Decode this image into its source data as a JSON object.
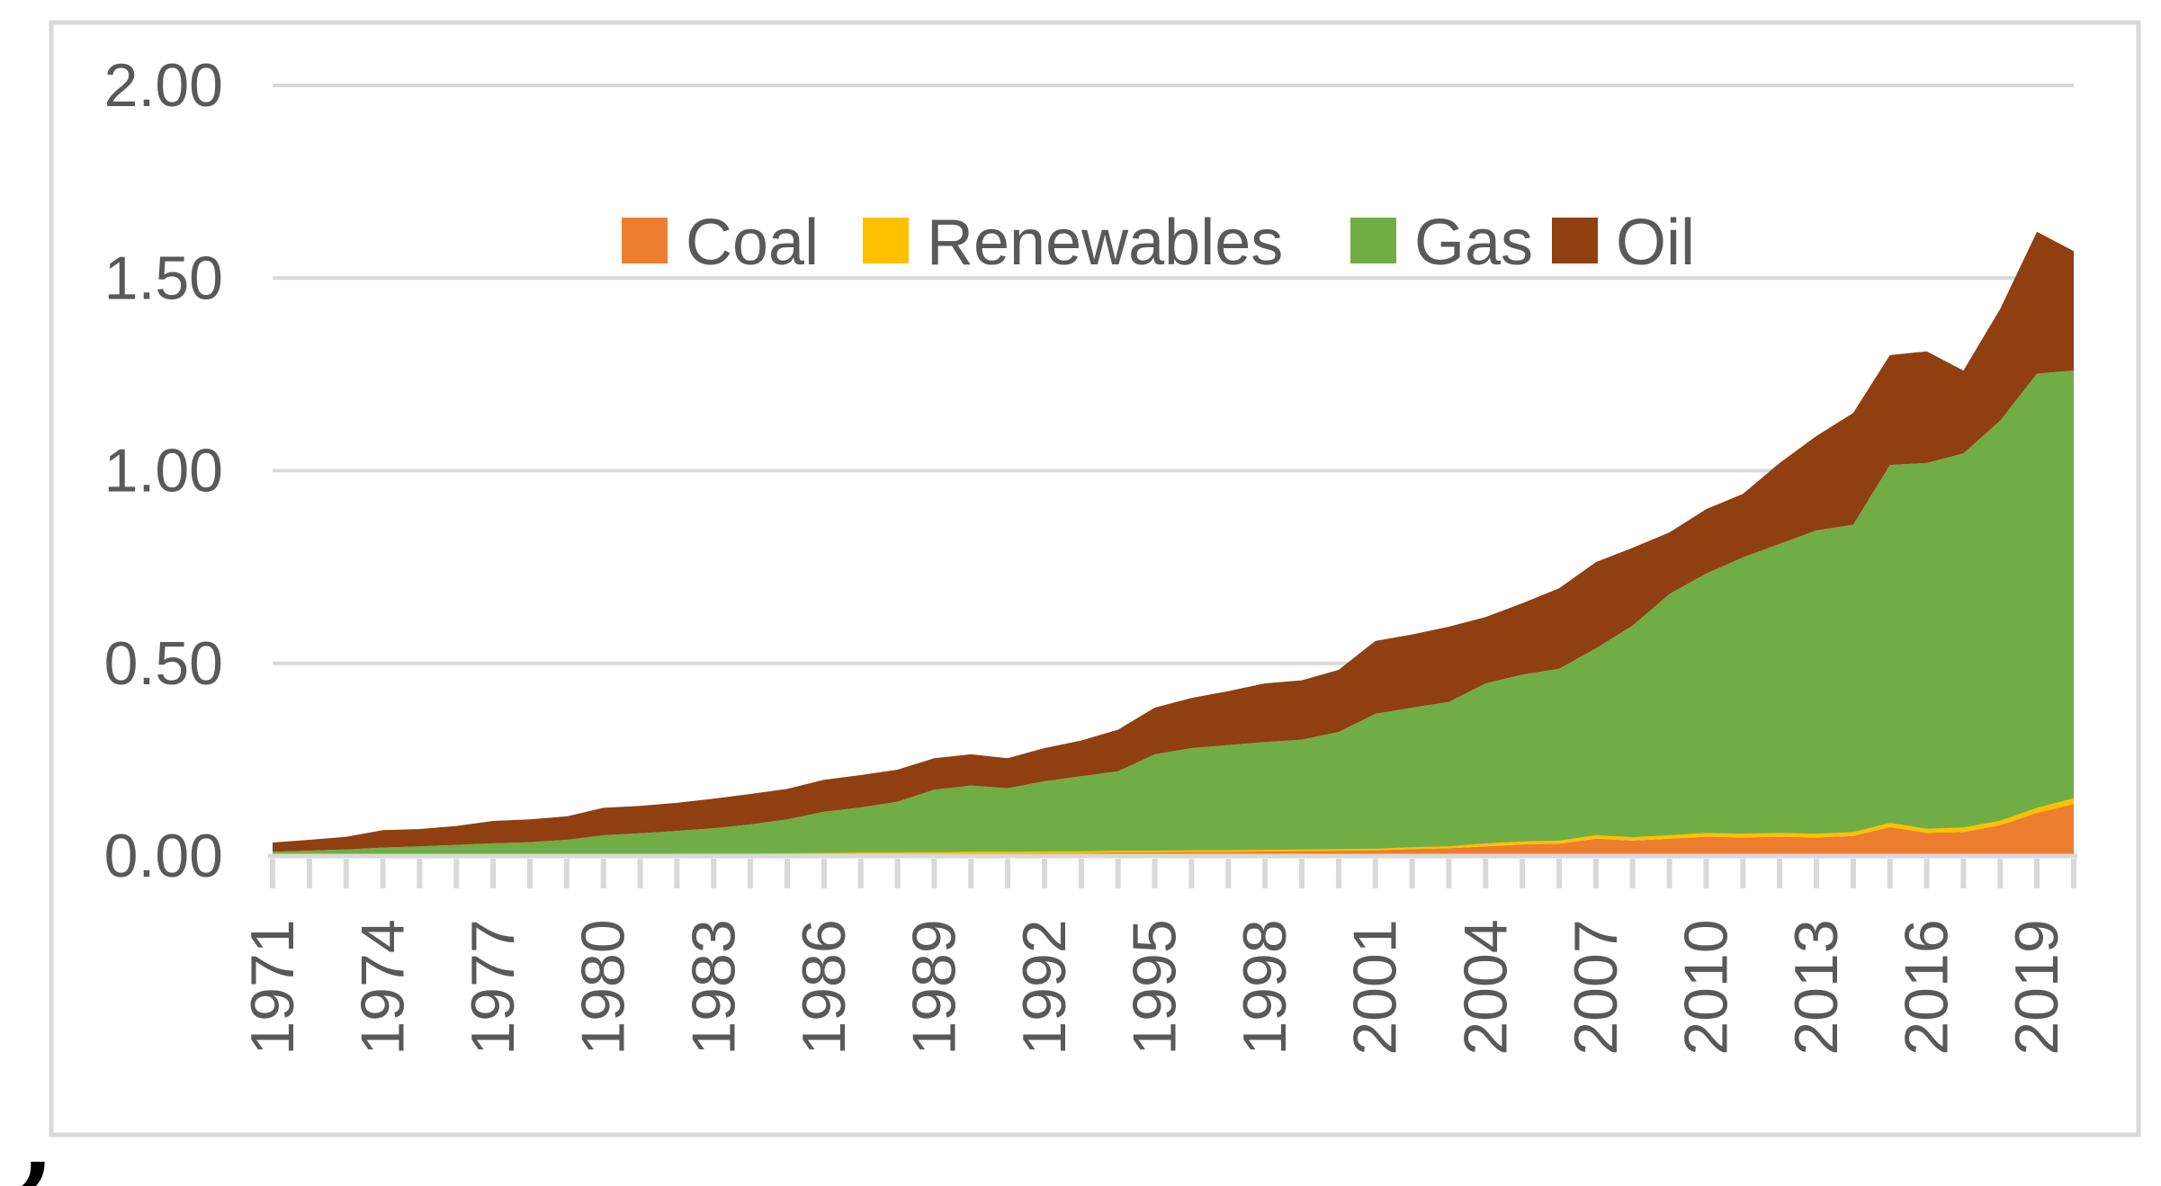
{
  "page": {
    "background": "#FFFFFF",
    "frame_border_color": "#D9D9D9",
    "stray_character": ","
  },
  "chart_data": {
    "type": "area",
    "stacked": true,
    "title": "",
    "subtitle": "",
    "xlabel": "",
    "ylabel": "",
    "grid": true,
    "legend_position": "top-center",
    "ylim": [
      0,
      2
    ],
    "ytick_values": [
      0,
      0.5,
      1,
      1.5,
      2
    ],
    "ytick_labels": [
      "0.00",
      "0.50",
      "1.00",
      "1.50",
      "2.00"
    ],
    "xtick_years": [
      1971,
      1974,
      1977,
      1980,
      1983,
      1986,
      1989,
      1992,
      1995,
      1998,
      2001,
      2004,
      2007,
      2010,
      2013,
      2016,
      2019
    ],
    "x": [
      1971,
      1972,
      1973,
      1974,
      1975,
      1976,
      1977,
      1978,
      1979,
      1980,
      1981,
      1982,
      1983,
      1984,
      1985,
      1986,
      1987,
      1988,
      1989,
      1990,
      1991,
      1992,
      1993,
      1994,
      1995,
      1996,
      1997,
      1998,
      1999,
      2000,
      2001,
      2002,
      2003,
      2004,
      2005,
      2006,
      2007,
      2008,
      2009,
      2010,
      2011,
      2012,
      2013,
      2014,
      2015,
      2016,
      2017,
      2018,
      2019,
      2020
    ],
    "series": [
      {
        "name": "Coal",
        "color": "#ED7D31",
        "values": [
          0.002,
          0.002,
          0.002,
          0.002,
          0.002,
          0.003,
          0.003,
          0.003,
          0.004,
          0.004,
          0.004,
          0.005,
          0.005,
          0.005,
          0.006,
          0.006,
          0.007,
          0.007,
          0.008,
          0.009,
          0.009,
          0.01,
          0.01,
          0.011,
          0.011,
          0.012,
          0.012,
          0.013,
          0.013,
          0.014,
          0.015,
          0.018,
          0.02,
          0.025,
          0.03,
          0.032,
          0.045,
          0.04,
          0.045,
          0.05,
          0.048,
          0.05,
          0.048,
          0.052,
          0.075,
          0.06,
          0.062,
          0.08,
          0.112,
          0.135
        ]
      },
      {
        "name": "Renewables",
        "color": "#FFC000",
        "values": [
          0.001,
          0.001,
          0.001,
          0.001,
          0.001,
          0.001,
          0.001,
          0.001,
          0.001,
          0.001,
          0.001,
          0.001,
          0.001,
          0.001,
          0.001,
          0.002,
          0.002,
          0.002,
          0.002,
          0.002,
          0.002,
          0.002,
          0.002,
          0.003,
          0.003,
          0.003,
          0.003,
          0.003,
          0.004,
          0.004,
          0.004,
          0.005,
          0.005,
          0.008,
          0.008,
          0.008,
          0.009,
          0.009,
          0.009,
          0.01,
          0.01,
          0.01,
          0.01,
          0.01,
          0.011,
          0.011,
          0.012,
          0.012,
          0.013,
          0.015
        ]
      },
      {
        "name": "Gas",
        "color": "#70AD47",
        "values": [
          0.008,
          0.011,
          0.014,
          0.019,
          0.022,
          0.025,
          0.029,
          0.032,
          0.037,
          0.049,
          0.054,
          0.059,
          0.066,
          0.076,
          0.088,
          0.107,
          0.117,
          0.132,
          0.162,
          0.172,
          0.165,
          0.182,
          0.195,
          0.206,
          0.25,
          0.265,
          0.273,
          0.28,
          0.285,
          0.304,
          0.35,
          0.362,
          0.375,
          0.415,
          0.433,
          0.446,
          0.485,
          0.549,
          0.626,
          0.673,
          0.717,
          0.75,
          0.787,
          0.798,
          0.929,
          0.949,
          0.971,
          1.038,
          1.127,
          1.11
        ]
      },
      {
        "name": "Oil",
        "color": "#903F10",
        "values": [
          0.024,
          0.028,
          0.033,
          0.045,
          0.045,
          0.049,
          0.058,
          0.059,
          0.061,
          0.071,
          0.071,
          0.073,
          0.077,
          0.079,
          0.079,
          0.083,
          0.084,
          0.083,
          0.082,
          0.081,
          0.078,
          0.086,
          0.093,
          0.108,
          0.121,
          0.13,
          0.14,
          0.152,
          0.154,
          0.161,
          0.189,
          0.19,
          0.195,
          0.172,
          0.185,
          0.209,
          0.224,
          0.202,
          0.16,
          0.167,
          0.165,
          0.21,
          0.245,
          0.29,
          0.285,
          0.29,
          0.215,
          0.29,
          0.368,
          0.31
        ]
      }
    ],
    "grid_color": "#D9D9D9",
    "axis_color": "#D9D9D9",
    "tick_color": "#D9D9D9",
    "label_color": "#595959"
  }
}
